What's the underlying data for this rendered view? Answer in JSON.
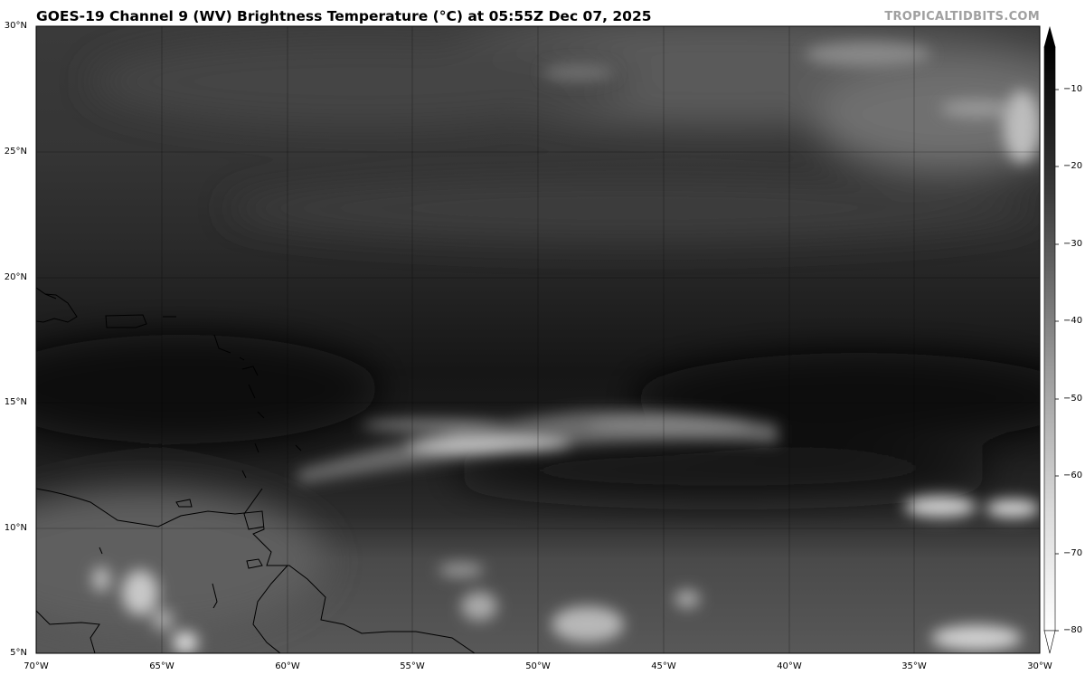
{
  "title": "GOES-19 Channel 9 (WV) Brightness Temperature (°C) at 05:55Z Dec 07, 2025",
  "watermark": "TROPICALTIDBITS.COM",
  "map": {
    "lon_range": [
      -70,
      -30
    ],
    "lat_range": [
      5,
      30
    ],
    "lat_labels": [
      "30°N",
      "25°N",
      "20°N",
      "15°N",
      "10°N",
      "5°N"
    ],
    "lon_labels": [
      "70°W",
      "65°W",
      "60°W",
      "55°W",
      "50°W",
      "45°W",
      "40°W",
      "35°W",
      "30°W"
    ],
    "gridlines": true
  },
  "colorbar": {
    "ticks": [
      "−10",
      "−20",
      "−30",
      "−40",
      "−50",
      "−60",
      "−70",
      "−80"
    ],
    "colors": {
      "warm": "#000000",
      "cold": "#ffffff"
    },
    "extend": "both"
  }
}
